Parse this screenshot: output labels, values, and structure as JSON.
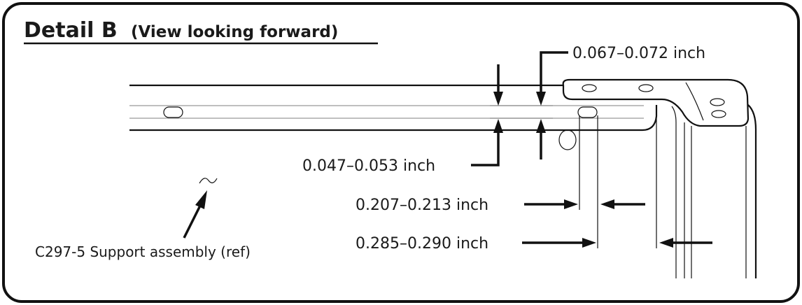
{
  "detail": {
    "title": "Detail B",
    "subtitle": "(View looking forward)"
  },
  "dimensions": {
    "upper_thickness": "0.067–0.072 inch",
    "lower_thickness": "0.047–0.053 inch",
    "hole_to_edge": "0.207–0.213 inch",
    "hole_to_flange": "0.285–0.290 inch"
  },
  "reference": {
    "label": "C297-5 Support assembly (ref)"
  }
}
